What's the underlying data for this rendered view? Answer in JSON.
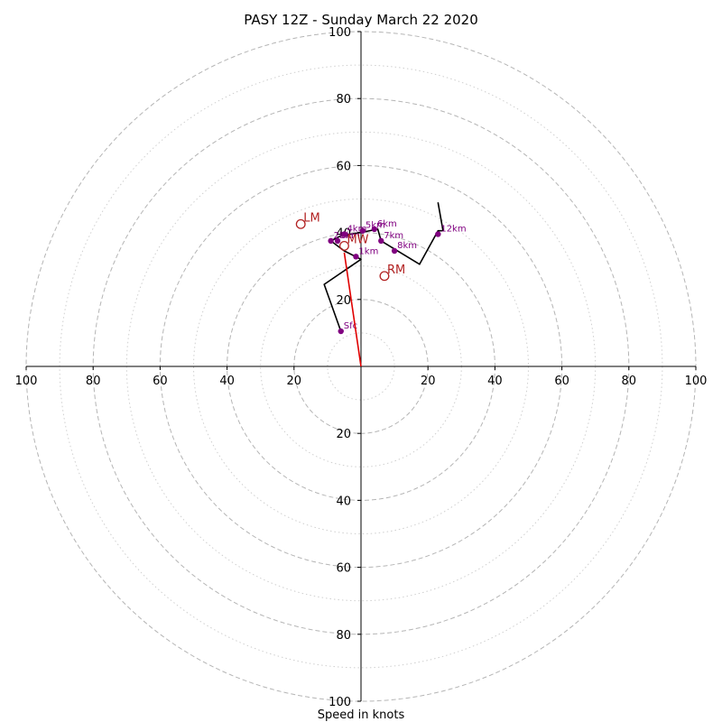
{
  "chart_data": {
    "type": "scatter",
    "title": "PASY 12Z - Sunday March 22 2020",
    "xlabel": "Speed in knots",
    "ylabel": "",
    "xlim": [
      -100,
      100
    ],
    "ylim": [
      -100,
      100
    ],
    "rings": {
      "major": [
        20,
        40,
        60,
        80,
        100
      ],
      "minor": [
        10,
        30,
        50,
        70,
        90
      ],
      "major_style": "dashed gray",
      "minor_style": "dotted light gray"
    },
    "axis_ticks": {
      "x": [
        "100",
        "80",
        "60",
        "40",
        "20",
        "20",
        "40",
        "60",
        "80",
        "100"
      ],
      "x_values": [
        -100,
        -80,
        -60,
        -40,
        -20,
        20,
        40,
        60,
        80,
        100
      ],
      "y": [
        "20",
        "40",
        "60",
        "80",
        "100",
        "20",
        "40",
        "60",
        "80",
        "100"
      ],
      "y_values": [
        20,
        40,
        60,
        80,
        100,
        -20,
        -40,
        -60,
        -80,
        -100
      ]
    },
    "hodograph_trace": {
      "name": "",
      "color": "#000000",
      "points": [
        {
          "u": -6,
          "v": 10.5
        },
        {
          "u": -11,
          "v": 24.5
        },
        {
          "u": 0,
          "v": 32
        },
        {
          "u": -5,
          "v": 34.5
        },
        {
          "u": -9,
          "v": 37.5
        },
        {
          "u": -6,
          "v": 39
        },
        {
          "u": 0,
          "v": 40
        },
        {
          "u": 5,
          "v": 41
        },
        {
          "u": 6,
          "v": 37.5
        },
        {
          "u": 17.5,
          "v": 30.5
        },
        {
          "u": 23,
          "v": 40.5
        },
        {
          "u": 24.5,
          "v": 40.5
        },
        {
          "u": 23,
          "v": 49
        }
      ]
    },
    "height_markers": {
      "color": "#800080",
      "points": [
        {
          "label": "Sfc",
          "u": -6,
          "v": 10.5
        },
        {
          "label": "1km",
          "u": -1.5,
          "v": 32.8
        },
        {
          "label": "2km",
          "u": -9,
          "v": 37.5
        },
        {
          "label": "3km",
          "u": -7,
          "v": 37.5
        },
        {
          "label": "4km",
          "u": -5,
          "v": 39.5
        },
        {
          "label": "5km",
          "u": 0.5,
          "v": 40.5
        },
        {
          "label": "6km",
          "u": 4,
          "v": 41
        },
        {
          "label": "7km",
          "u": 6,
          "v": 37.5
        },
        {
          "label": "8km",
          "u": 10,
          "v": 34.5
        },
        {
          "label": "12km",
          "u": 23,
          "v": 39.5
        }
      ]
    },
    "storm_motion": {
      "color": "#b22222",
      "markers": [
        {
          "label": "LM",
          "u": -18,
          "v": 42.5
        },
        {
          "label": "MW",
          "u": -5,
          "v": 36
        },
        {
          "label": "RM",
          "u": 7,
          "v": 27
        }
      ],
      "vector": {
        "from": {
          "u": 0,
          "v": 0
        },
        "to": {
          "u": -5,
          "v": 34
        },
        "color": "#e00000"
      }
    },
    "grid": true,
    "legend": "none"
  }
}
